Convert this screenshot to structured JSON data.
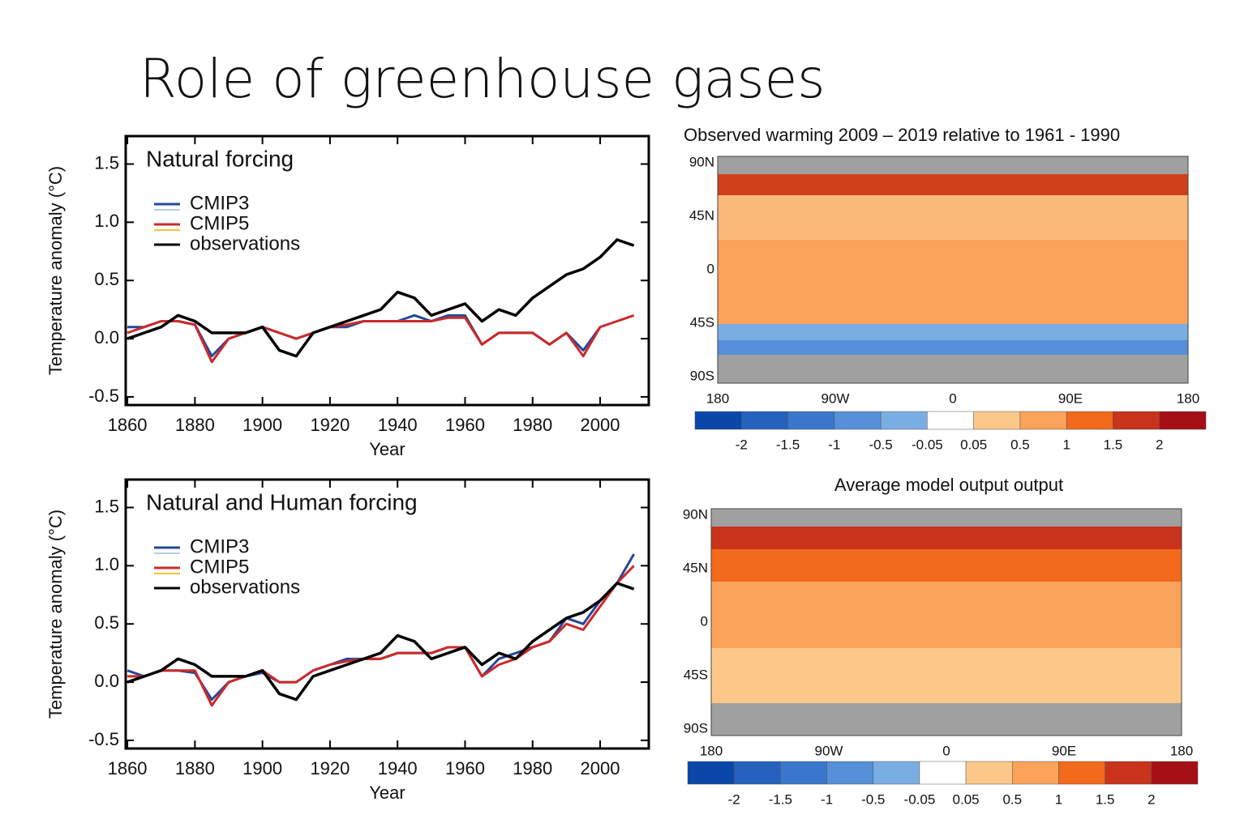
{
  "title": "Role of greenhouse gases",
  "chart_data": [
    {
      "type": "line",
      "title": "Natural forcing",
      "x_label": "Year",
      "y_label": "Temperature anomaly (°C)",
      "x": [
        1860,
        1865,
        1870,
        1875,
        1880,
        1885,
        1890,
        1895,
        1900,
        1905,
        1910,
        1915,
        1920,
        1925,
        1930,
        1935,
        1940,
        1945,
        1950,
        1955,
        1960,
        1965,
        1970,
        1975,
        1980,
        1985,
        1990,
        1995,
        2000,
        2005,
        2010
      ],
      "series": [
        {
          "name": "CMIP3",
          "color": "#24489a",
          "ensemble_color": "#b8cde6",
          "values": [
            0.1,
            0.1,
            0.15,
            0.15,
            0.12,
            -0.15,
            0.0,
            0.05,
            0.1,
            0.05,
            0.0,
            0.05,
            0.1,
            0.1,
            0.15,
            0.15,
            0.15,
            0.2,
            0.15,
            0.2,
            0.2,
            -0.05,
            0.05,
            0.05,
            0.05,
            -0.05,
            0.05,
            -0.1,
            0.1,
            null,
            null
          ]
        },
        {
          "name": "CMIP5",
          "color": "#cc2a2a",
          "ensemble_color": "#f2c62f",
          "values": [
            0.05,
            0.1,
            0.15,
            0.15,
            0.12,
            -0.2,
            0.0,
            0.05,
            0.1,
            0.05,
            0.0,
            0.05,
            0.1,
            0.12,
            0.15,
            0.15,
            0.15,
            0.15,
            0.15,
            0.18,
            0.18,
            -0.05,
            0.05,
            0.05,
            0.05,
            -0.05,
            0.05,
            -0.15,
            0.1,
            0.15,
            0.2
          ]
        },
        {
          "name": "observations",
          "color": "#000000",
          "values": [
            0.0,
            0.05,
            0.1,
            0.2,
            0.15,
            0.05,
            0.05,
            0.05,
            0.1,
            -0.1,
            -0.15,
            0.05,
            0.1,
            0.15,
            0.2,
            0.25,
            0.4,
            0.35,
            0.2,
            0.25,
            0.3,
            0.15,
            0.25,
            0.2,
            0.35,
            0.45,
            0.55,
            0.6,
            0.7,
            0.85,
            0.8
          ]
        }
      ],
      "xlim": [
        1859.5,
        2014.4
      ],
      "xticks": [
        1860,
        1880,
        1900,
        1920,
        1940,
        1960,
        1980,
        2000
      ],
      "ylim": [
        -0.57,
        1.74
      ],
      "yticks": [
        {
          "value": 1.5,
          "label": "1.5"
        },
        {
          "value": 1.0,
          "label": "1.0"
        },
        {
          "value": 0.5,
          "label": "0.5"
        },
        {
          "value": 0.0,
          "label": "0.0"
        },
        {
          "value": -0.5,
          "label": "-0.5"
        }
      ]
    },
    {
      "type": "line",
      "title": "Natural and Human forcing",
      "x_label": "Year",
      "y_label": "Temperature anomaly (°C)",
      "x": [
        1860,
        1865,
        1870,
        1875,
        1880,
        1885,
        1890,
        1895,
        1900,
        1905,
        1910,
        1915,
        1920,
        1925,
        1930,
        1935,
        1940,
        1945,
        1950,
        1955,
        1960,
        1965,
        1970,
        1975,
        1980,
        1985,
        1990,
        1995,
        2000,
        2005,
        2010
      ],
      "series": [
        {
          "name": "CMIP3",
          "color": "#24489a",
          "ensemble_color": "#b8cde6",
          "values": [
            0.1,
            0.05,
            0.1,
            0.1,
            0.08,
            -0.15,
            0.0,
            0.05,
            0.08,
            0.0,
            0.0,
            0.1,
            0.15,
            0.2,
            0.2,
            0.2,
            0.25,
            0.25,
            0.25,
            0.3,
            0.3,
            0.05,
            0.2,
            0.25,
            0.3,
            0.35,
            0.55,
            0.5,
            0.7,
            0.85,
            1.1
          ]
        },
        {
          "name": "CMIP5",
          "color": "#cc2a2a",
          "ensemble_color": "#f2c62f",
          "values": [
            0.05,
            0.05,
            0.1,
            0.1,
            0.1,
            -0.2,
            0.0,
            0.05,
            0.1,
            0.0,
            0.0,
            0.1,
            0.15,
            0.18,
            0.2,
            0.2,
            0.25,
            0.25,
            0.25,
            0.3,
            0.3,
            0.05,
            0.15,
            0.2,
            0.3,
            0.35,
            0.5,
            0.45,
            0.65,
            0.85,
            1.0
          ]
        },
        {
          "name": "observations",
          "color": "#000000",
          "values": [
            0.0,
            0.05,
            0.1,
            0.2,
            0.15,
            0.05,
            0.05,
            0.05,
            0.1,
            -0.1,
            -0.15,
            0.05,
            0.1,
            0.15,
            0.2,
            0.25,
            0.4,
            0.35,
            0.2,
            0.25,
            0.3,
            0.15,
            0.25,
            0.2,
            0.35,
            0.45,
            0.55,
            0.6,
            0.7,
            0.85,
            0.8
          ]
        }
      ],
      "xlim": [
        1859.5,
        2014.4
      ],
      "xticks": [
        1860,
        1880,
        1900,
        1920,
        1940,
        1960,
        1980,
        2000
      ],
      "ylim": [
        -0.57,
        1.74
      ],
      "yticks": [
        {
          "value": 1.5,
          "label": "1.5"
        },
        {
          "value": 1.0,
          "label": "1.0"
        },
        {
          "value": 0.5,
          "label": "0.5"
        },
        {
          "value": 0.0,
          "label": "0.0"
        },
        {
          "value": -0.5,
          "label": "-0.5"
        }
      ]
    },
    {
      "type": "map",
      "title": "Observed warming 2009 – 2019 relative to 1961 - 1990",
      "lat_labels": [
        "90N",
        "45N",
        "0",
        "45S",
        "90S"
      ],
      "lon_labels": [
        "180",
        "90W",
        "0",
        "90E",
        "180"
      ],
      "colorbar_colors": [
        "#0a47a8",
        "#2462bd",
        "#3a77cc",
        "#5590d8",
        "#79aee3",
        "#ffffff",
        "#fcc88a",
        "#fba35a",
        "#f26a1b",
        "#c9321b",
        "#a50f15"
      ],
      "colorbar_ticks": [
        -2,
        -1.5,
        -1,
        -0.5,
        -0.05,
        0.05,
        0.5,
        1,
        1.5,
        2
      ]
    },
    {
      "type": "map",
      "title": "Average model output output",
      "lat_labels": [
        "90N",
        "45N",
        "0",
        "45S",
        "90S"
      ],
      "lon_labels": [
        "180",
        "90W",
        "0",
        "90E",
        "180"
      ],
      "colorbar_colors": [
        "#0a47a8",
        "#2462bd",
        "#3a77cc",
        "#5590d8",
        "#79aee3",
        "#ffffff",
        "#fcc88a",
        "#fba35a",
        "#f26a1b",
        "#c9321b",
        "#a50f15"
      ],
      "colorbar_ticks": [
        -2,
        -1.5,
        -1,
        -0.5,
        -0.05,
        0.05,
        0.5,
        1,
        1.5,
        2
      ]
    }
  ]
}
